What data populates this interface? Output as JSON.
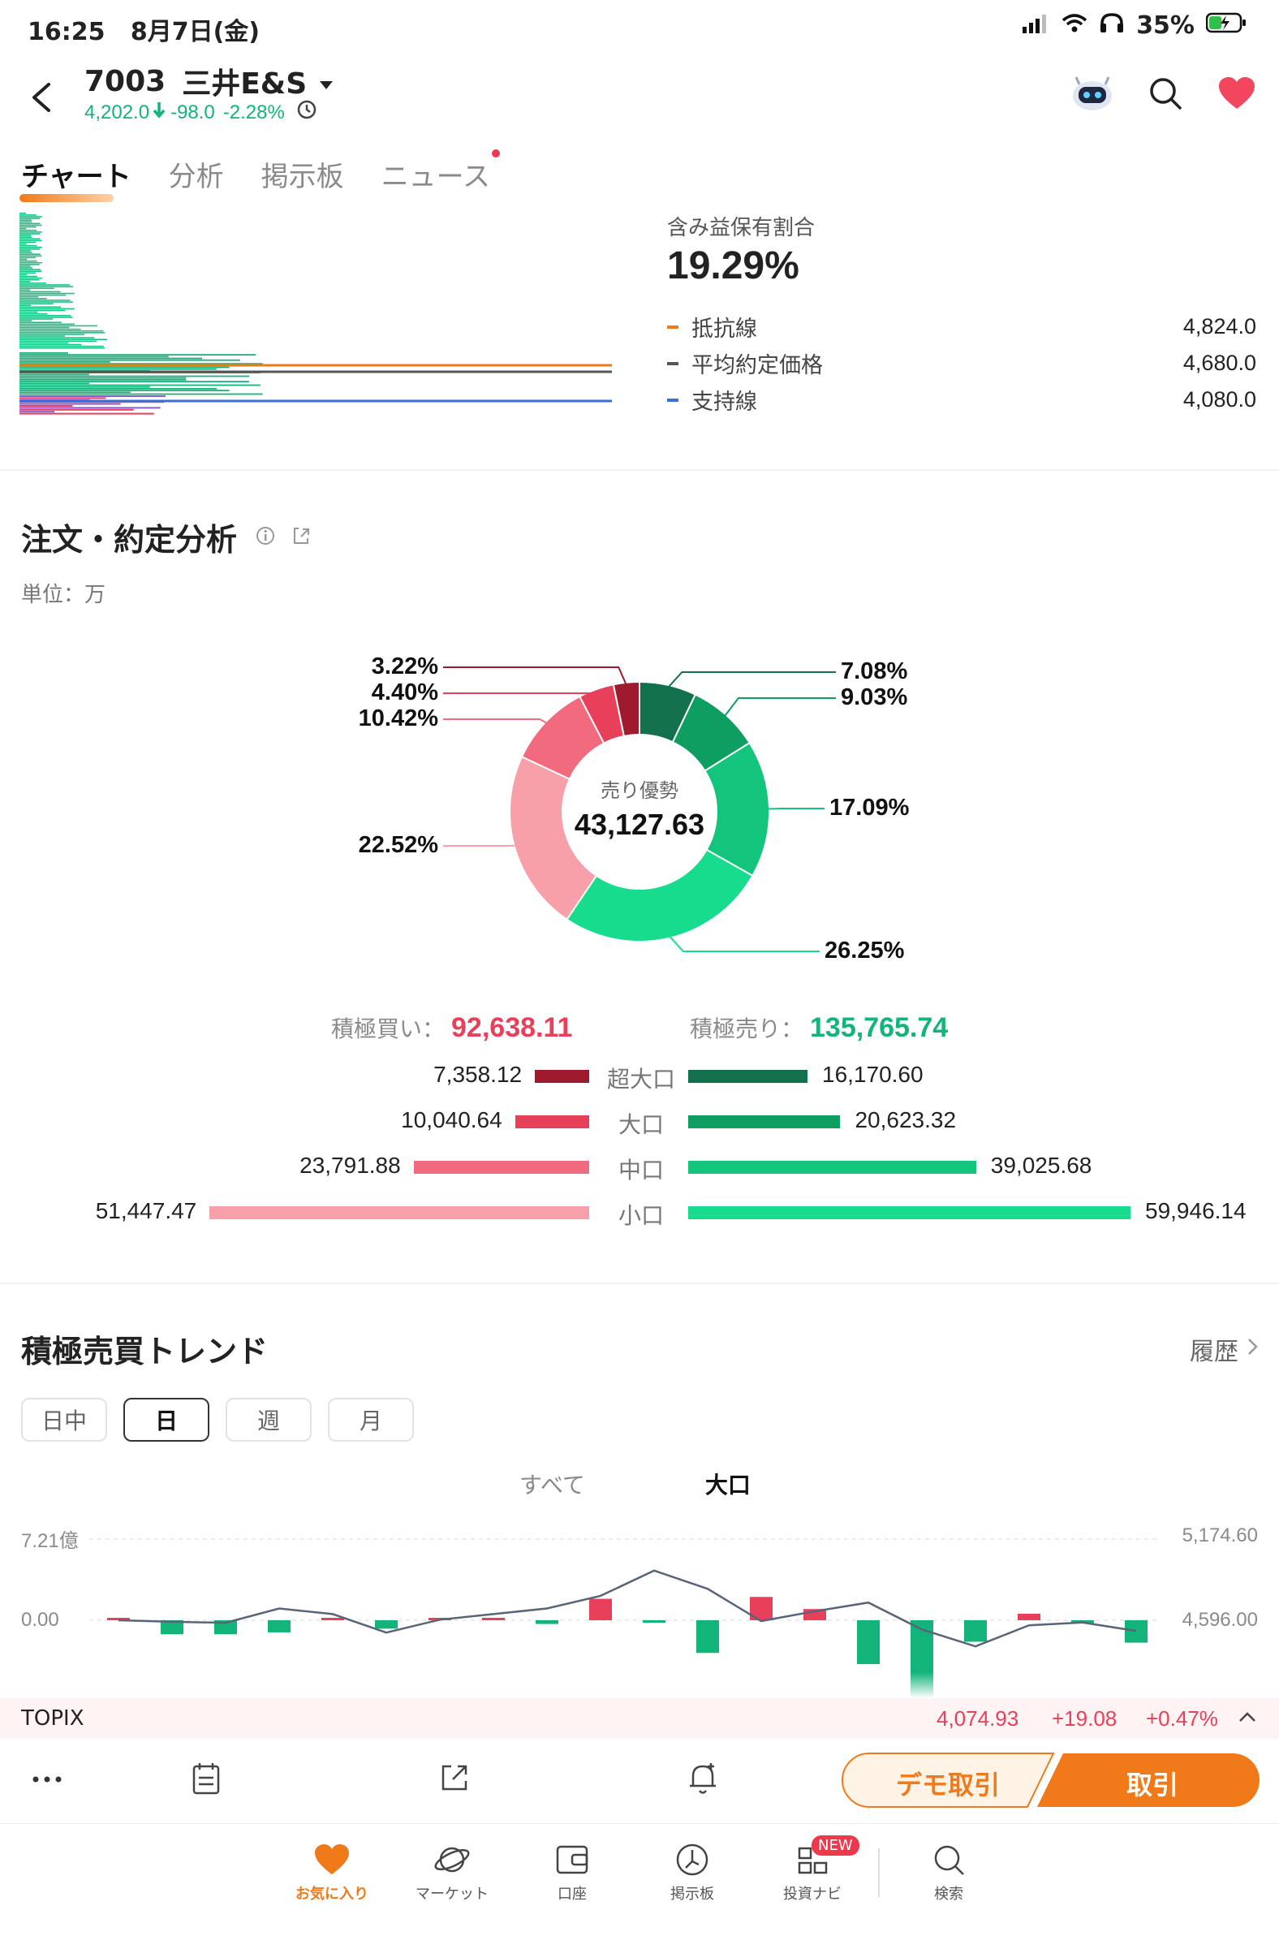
{
  "status_bar": {
    "time": "16:25",
    "date": "8月7日(金)",
    "battery": "35%"
  },
  "header": {
    "code": "7003",
    "name": "三井E&S",
    "price": "4,202.0",
    "change": "-98.0",
    "change_pct": "-2.28%"
  },
  "tabs": [
    "チャート",
    "分析",
    "掲示板",
    "ニュース"
  ],
  "profit_panel": {
    "label": "含み益保有割合",
    "value": "19.29%",
    "lines": [
      {
        "label": "抵抗線",
        "value": "4,824.0",
        "color": "#f07a1a"
      },
      {
        "label": "平均約定価格",
        "value": "4,680.0",
        "color": "#555555"
      },
      {
        "label": "支持線",
        "value": "4,080.0",
        "color": "#3b6fd8"
      }
    ]
  },
  "order_analysis": {
    "title": "注文・約定分析",
    "unit": "単位：万",
    "center_label": "売り優勢",
    "center_value": "43,127.63",
    "buy_label": "積極買い：",
    "buy_total": "92,638.11",
    "sell_label": "積極売り：",
    "sell_total": "135,765.74",
    "categories": [
      "超大口",
      "大口",
      "中口",
      "小口"
    ],
    "buy_values": [
      "7,358.12",
      "10,040.64",
      "23,791.88",
      "51,447.47"
    ],
    "sell_values": [
      "16,170.60",
      "20,623.32",
      "39,025.68",
      "59,946.14"
    ],
    "buy_colors": [
      "#a01a2e",
      "#e8405a",
      "#f26a7e",
      "#f7a0aa"
    ],
    "sell_colors": [
      "#13704c",
      "#0f9e62",
      "#12c47c",
      "#17dc8e"
    ]
  },
  "chart_data": {
    "type": "pie",
    "donut": true,
    "center_label": "売り優勢",
    "center_value": "43,127.63",
    "slices": [
      {
        "label": "7.08%",
        "value": 7.08,
        "color": "#13704c"
      },
      {
        "label": "9.03%",
        "value": 9.03,
        "color": "#0f9e62"
      },
      {
        "label": "17.09%",
        "value": 17.09,
        "color": "#12c47c"
      },
      {
        "label": "26.25%",
        "value": 26.25,
        "color": "#17dc8e"
      },
      {
        "label": "22.52%",
        "value": 22.52,
        "color": "#f7a0aa"
      },
      {
        "label": "10.42%",
        "value": 10.42,
        "color": "#f26a7e"
      },
      {
        "label": "4.40%",
        "value": 4.4,
        "color": "#e8405a"
      },
      {
        "label": "3.22%",
        "value": 3.22,
        "color": "#a01a2e"
      }
    ]
  },
  "trend": {
    "title": "積極売買トレンド",
    "history": "履歴",
    "periods": [
      "日中",
      "日",
      "週",
      "月"
    ],
    "active_period": "日",
    "sub_tabs": [
      "すべて",
      "大口"
    ],
    "left_axis": [
      "7.21億",
      "0.00"
    ],
    "right_axis": [
      "5,174.60",
      "4,596.00"
    ],
    "bars": [
      0.2,
      -1.5,
      -1.5,
      -1.3,
      0.2,
      -0.9,
      0.1,
      0.2,
      -0.4,
      2.3,
      -0.2,
      -3.5,
      2.5,
      1.2,
      -4.7,
      -8.6,
      -2.3,
      0.7,
      -0.3,
      -2.4
    ],
    "line": [
      4596,
      4585,
      4578,
      4680,
      4640,
      4508,
      4600,
      4640,
      4680,
      4770,
      4950,
      4820,
      4590,
      4660,
      4722,
      4530,
      4410,
      4560,
      4580,
      4520
    ]
  },
  "topix": {
    "label": "TOPIX",
    "value": "4,074.93",
    "change": "+19.08",
    "pct": "+0.47%"
  },
  "actions": {
    "demo": "デモ取引",
    "trade": "取引"
  },
  "nav": [
    {
      "label": "お気に入り",
      "icon": "heart-icon",
      "active": true
    },
    {
      "label": "マーケット",
      "icon": "planet-icon",
      "active": false
    },
    {
      "label": "口座",
      "icon": "wallet-icon",
      "active": false
    },
    {
      "label": "掲示板",
      "icon": "board-icon",
      "active": false
    },
    {
      "label": "投資ナビ",
      "icon": "grid-icon",
      "active": false,
      "badge": "NEW"
    },
    {
      "label": "検索",
      "icon": "search-icon",
      "active": false
    }
  ],
  "colors": {
    "accent": "#f07a1a",
    "up": "#e8405a",
    "down": "#12b47a"
  }
}
